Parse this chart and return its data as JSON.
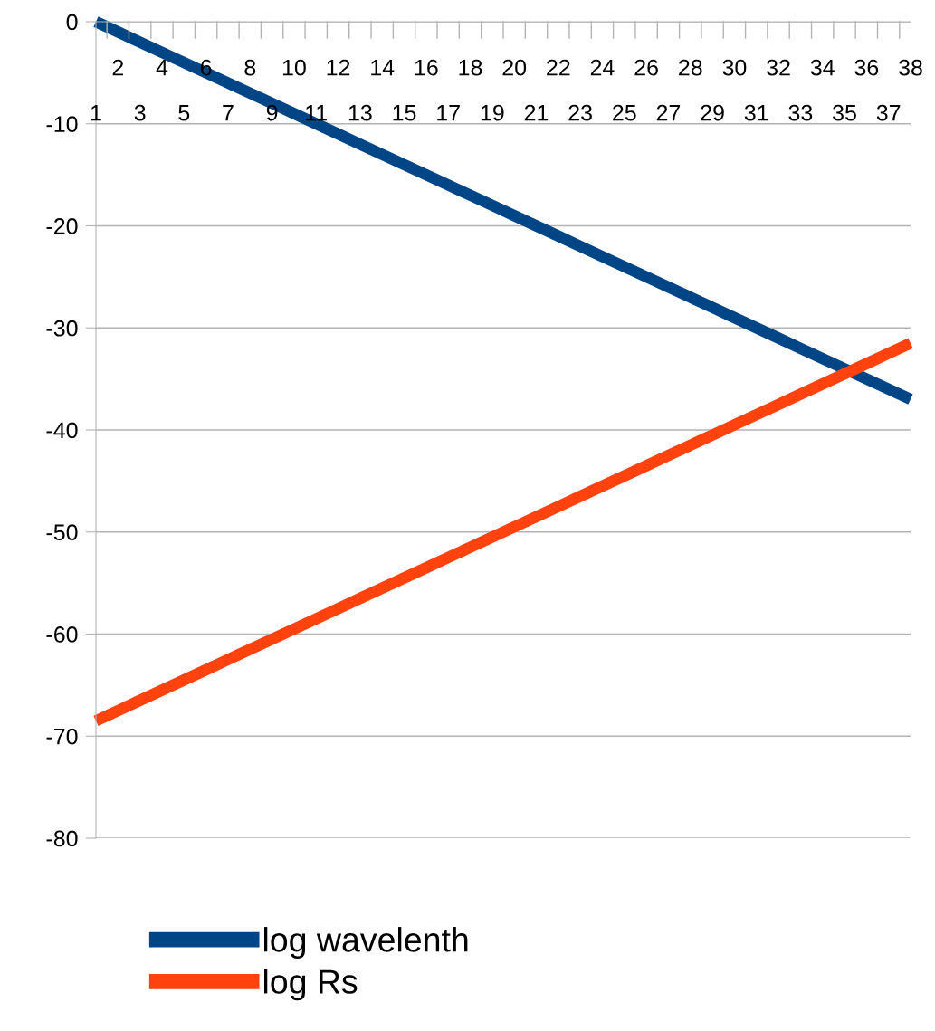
{
  "chart_data": {
    "type": "line",
    "categories": [
      "1",
      "2",
      "3",
      "4",
      "5",
      "6",
      "7",
      "8",
      "9",
      "10",
      "11",
      "12",
      "13",
      "14",
      "15",
      "16",
      "17",
      "18",
      "19",
      "20",
      "21",
      "22",
      "23",
      "24",
      "25",
      "26",
      "27",
      "28",
      "29",
      "30",
      "31",
      "32",
      "33",
      "34",
      "35",
      "36",
      "37",
      "38"
    ],
    "series": [
      {
        "name": "log wavelenth",
        "color": "#004586",
        "values": [
          0,
          -1,
          -2,
          -3,
          -4,
          -5,
          -6,
          -7,
          -8,
          -9,
          -10,
          -11,
          -12,
          -13,
          -14,
          -15,
          -16,
          -17,
          -18,
          -19,
          -20,
          -21,
          -22,
          -23,
          -24,
          -25,
          -26,
          -27,
          -28,
          -29,
          -30,
          -31,
          -32,
          -33,
          -34,
          -35,
          -36,
          -37
        ]
      },
      {
        "name": "log Rs",
        "color": "#ff420e",
        "values": [
          -68.5,
          -67.5,
          -66.5,
          -65.5,
          -64.5,
          -63.5,
          -62.5,
          -61.5,
          -60.5,
          -59.5,
          -58.5,
          -57.5,
          -56.5,
          -55.5,
          -54.5,
          -53.5,
          -52.5,
          -51.5,
          -50.5,
          -49.5,
          -48.5,
          -47.5,
          -46.5,
          -45.5,
          -44.5,
          -43.5,
          -42.5,
          -41.5,
          -40.5,
          -39.5,
          -38.5,
          -37.5,
          -36.5,
          -35.5,
          -34.5,
          -33.5,
          -32.5,
          -31.5
        ]
      }
    ],
    "ylim": [
      -80,
      0
    ],
    "yticks": [
      -80,
      -70,
      -60,
      -50,
      -40,
      -30,
      -20,
      -10,
      0
    ],
    "grid": "y",
    "legend": "bottom",
    "marker": "none",
    "line_style": "solid"
  }
}
